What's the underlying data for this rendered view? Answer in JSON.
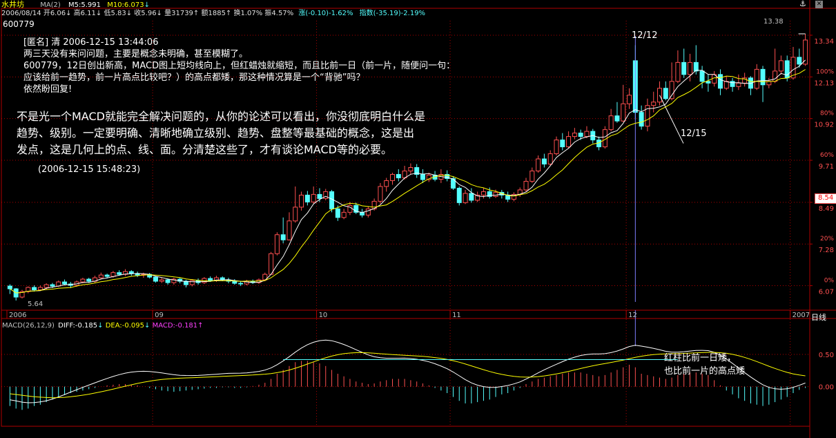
{
  "colors": {
    "up": "#ff5050",
    "down": "#54ffff",
    "ma5": "#ffffff",
    "ma10": "#ffff00",
    "frame": "#b00000",
    "text": "#c0c0c0",
    "white": "#ffffff",
    "yellow": "#ffff00",
    "magenta": "#ff40ff",
    "cyan": "#54ffff",
    "red": "#ff5050"
  },
  "header": {
    "stock_name": "水井坊",
    "ma_label": "MA(2)",
    "ma5": "M5:5.991",
    "ma10": "M10:6.073",
    "close_arrow": "↓",
    "code": "600779",
    "quote_line": "2006/08/14 开6.06↓ 高6.11↓ 低5.83↓ 收5.96↓ 量31739↑ 额1885↑ 换1.07% 振4.57%",
    "change": "涨(-0.10)-1.62%",
    "index": "指数(-35.19)-2.19%",
    "anchor_icon": "⚓",
    "close_icon": "✕"
  },
  "post": {
    "line1": "[匿名] 清 2006-12-15 13:44:06",
    "line2": "两三天没有来问问题，主要是概念未明确，甚至模糊了。",
    "line3": "600779，12日创出新高，MACD图上短均线向上，但红蜡烛就缩短，而且比前一日（前一片，随便问一句：",
    "line4": "应该给前一趋势，前一片高点比较吧？）的高点都矮，那这种情况算是一个“背驰”吗？",
    "line5": "依然盼回复!"
  },
  "reply": {
    "line1": "不是光一个MACD就能完全解决问题的，从你的论述可以看出，你没彻底明白什么是",
    "line2": "趋势、级别。一定要明确、清晰地确立级别、趋势、盘整等最基础的概念，这是出",
    "line3": "发点，这是几何上的点、线、面。分清楚这些了，才有谈论MACD等的必要。",
    "time": "(2006-12-15 15:48:23)"
  },
  "annotations": {
    "date_1212": "12/12",
    "date_1215": "12/15",
    "macd_note1": "红柱比前一日矮，",
    "macd_note2": "也比前一片的高点矮",
    "high_label": "13.38",
    "low_label": "5.64"
  },
  "macd_header": {
    "label": "MACD(26,12,9)",
    "diff": "DIFF:-0.185",
    "dea": "DEA:-0.095",
    "macd": "MACD:-0.181",
    "diff_arrow": "↓",
    "dea_arrow": "↓",
    "macd_arrow": "↑"
  },
  "axis": {
    "price_ticks": [
      {
        "pct": "",
        "price": "13.34",
        "v": 13.34
      },
      {
        "pct": "100%",
        "price": "12.13",
        "v": 12.13
      },
      {
        "pct": "80%",
        "price": "10.92",
        "v": 10.92
      },
      {
        "pct": "60%",
        "price": "9.71",
        "v": 9.71
      },
      {
        "pct": "",
        "price": "8.49",
        "v": 8.49
      },
      {
        "pct": "20%",
        "price": "7.28",
        "v": 7.28
      },
      {
        "pct": "0%",
        "price": "6.07",
        "v": 6.07
      }
    ],
    "current_price": "8.54",
    "macd_ticks": [
      "0.50",
      "0.00"
    ],
    "month_labels": [
      "2006",
      "09",
      "10",
      "11",
      "12",
      "2007"
    ],
    "daily_label": "日线"
  },
  "chart_data": {
    "type": "candlestick",
    "price_range": [
      5.6,
      13.6
    ],
    "macd_range": [
      -0.55,
      0.95
    ],
    "month_start_index": [
      0,
      24,
      51,
      73,
      102,
      129
    ],
    "candles": [
      [
        6.06,
        5.98,
        6.11,
        5.83
      ],
      [
        5.98,
        5.74,
        6.0,
        5.64
      ],
      [
        5.74,
        5.9,
        5.95,
        5.7
      ],
      [
        5.9,
        6.02,
        6.05,
        5.85
      ],
      [
        6.02,
        5.95,
        6.08,
        5.9
      ],
      [
        5.95,
        6.02,
        6.08,
        5.92
      ],
      [
        6.02,
        6.1,
        6.14,
        5.96
      ],
      [
        6.1,
        6.06,
        6.15,
        6.0
      ],
      [
        6.06,
        6.18,
        6.22,
        6.03
      ],
      [
        6.18,
        6.12,
        6.25,
        6.08
      ],
      [
        6.12,
        6.08,
        6.18,
        6.0
      ],
      [
        6.08,
        6.18,
        6.22,
        6.04
      ],
      [
        6.18,
        6.26,
        6.3,
        6.14
      ],
      [
        6.26,
        6.2,
        6.3,
        6.15
      ],
      [
        6.2,
        6.3,
        6.36,
        6.16
      ],
      [
        6.3,
        6.38,
        6.45,
        6.26
      ],
      [
        6.38,
        6.34,
        6.42,
        6.28
      ],
      [
        6.34,
        6.45,
        6.5,
        6.3
      ],
      [
        6.45,
        6.4,
        6.52,
        6.36
      ],
      [
        6.4,
        6.48,
        6.55,
        6.35
      ],
      [
        6.48,
        6.42,
        6.52,
        6.36
      ],
      [
        6.42,
        6.38,
        6.48,
        6.32
      ],
      [
        6.38,
        6.4,
        6.45,
        6.3
      ],
      [
        6.4,
        6.32,
        6.44,
        6.28
      ],
      [
        6.32,
        6.2,
        6.35,
        6.16
      ],
      [
        6.2,
        6.24,
        6.3,
        6.15
      ],
      [
        6.24,
        6.16,
        6.28,
        6.1
      ],
      [
        6.16,
        6.26,
        6.3,
        6.1
      ],
      [
        6.26,
        6.2,
        6.3,
        6.14
      ],
      [
        6.2,
        6.1,
        6.24,
        6.02
      ],
      [
        6.1,
        6.22,
        6.26,
        6.05
      ],
      [
        6.22,
        6.16,
        6.28,
        6.1
      ],
      [
        6.16,
        6.28,
        6.32,
        6.12
      ],
      [
        6.28,
        6.22,
        6.34,
        6.18
      ],
      [
        6.22,
        6.3,
        6.36,
        6.18
      ],
      [
        6.3,
        6.24,
        6.34,
        6.2
      ],
      [
        6.24,
        6.2,
        6.3,
        6.14
      ],
      [
        6.2,
        6.14,
        6.26,
        6.1
      ],
      [
        6.14,
        6.12,
        6.2,
        6.06
      ],
      [
        6.12,
        6.2,
        6.24,
        6.08
      ],
      [
        6.2,
        6.16,
        6.25,
        6.12
      ],
      [
        6.16,
        6.24,
        6.28,
        6.12
      ],
      [
        6.24,
        6.4,
        6.45,
        6.2
      ],
      [
        6.4,
        7.0,
        7.05,
        6.38
      ],
      [
        7.0,
        7.55,
        7.62,
        6.95
      ],
      [
        7.55,
        7.4,
        8.05,
        7.3
      ],
      [
        7.4,
        7.95,
        8.2,
        7.38
      ],
      [
        7.95,
        8.35,
        8.95,
        7.9
      ],
      [
        8.35,
        8.7,
        8.8,
        8.25
      ],
      [
        8.7,
        8.5,
        8.82,
        8.4
      ],
      [
        8.5,
        8.72,
        8.95,
        8.45
      ],
      [
        8.72,
        8.6,
        8.9,
        8.5
      ],
      [
        8.6,
        8.8,
        8.88,
        8.55
      ],
      [
        8.8,
        8.3,
        8.85,
        8.2
      ],
      [
        8.3,
        8.05,
        8.4,
        7.95
      ],
      [
        8.05,
        8.2,
        8.3,
        8.0
      ],
      [
        8.2,
        8.4,
        8.5,
        8.12
      ],
      [
        8.4,
        8.2,
        8.48,
        8.15
      ],
      [
        8.2,
        8.12,
        8.3,
        8.05
      ],
      [
        8.12,
        8.3,
        8.38,
        8.05
      ],
      [
        8.3,
        8.52,
        8.6,
        8.25
      ],
      [
        8.52,
        8.95,
        9.05,
        8.45
      ],
      [
        8.95,
        9.12,
        9.2,
        8.8
      ],
      [
        9.12,
        9.3,
        9.35,
        9.0
      ],
      [
        9.3,
        9.2,
        9.45,
        9.1
      ],
      [
        9.2,
        9.4,
        9.55,
        9.15
      ],
      [
        9.4,
        9.5,
        9.62,
        9.3
      ],
      [
        9.5,
        9.3,
        9.6,
        9.2
      ],
      [
        9.3,
        9.15,
        9.45,
        9.05
      ],
      [
        9.15,
        9.28,
        9.35,
        9.08
      ],
      [
        9.28,
        9.16,
        9.4,
        9.1
      ],
      [
        9.16,
        9.3,
        9.45,
        9.05
      ],
      [
        9.3,
        9.18,
        9.42,
        9.1
      ],
      [
        9.18,
        8.9,
        9.25,
        8.85
      ],
      [
        8.9,
        8.48,
        8.95,
        8.4
      ],
      [
        8.48,
        8.75,
        8.85,
        8.44
      ],
      [
        8.75,
        8.55,
        8.9,
        8.48
      ],
      [
        8.55,
        8.7,
        8.8,
        8.5
      ],
      [
        8.7,
        8.8,
        8.9,
        8.6
      ],
      [
        8.8,
        8.66,
        8.92,
        8.6
      ],
      [
        8.66,
        8.78,
        8.86,
        8.62
      ],
      [
        8.78,
        8.7,
        8.85,
        8.6
      ],
      [
        8.7,
        8.58,
        8.8,
        8.5
      ],
      [
        8.58,
        8.72,
        8.78,
        8.52
      ],
      [
        8.72,
        8.85,
        8.92,
        8.65
      ],
      [
        8.85,
        9.1,
        9.2,
        8.8
      ],
      [
        9.1,
        9.4,
        9.5,
        9.05
      ],
      [
        9.4,
        9.75,
        9.85,
        9.35
      ],
      [
        9.75,
        9.6,
        9.9,
        9.5
      ],
      [
        9.6,
        9.9,
        10.0,
        9.55
      ],
      [
        9.9,
        10.3,
        10.4,
        9.85
      ],
      [
        10.3,
        10.1,
        10.5,
        10.0
      ],
      [
        10.1,
        10.4,
        10.55,
        10.05
      ],
      [
        10.4,
        10.5,
        10.65,
        10.32
      ],
      [
        10.5,
        10.4,
        10.6,
        10.3
      ],
      [
        10.4,
        10.55,
        10.7,
        10.35
      ],
      [
        10.55,
        10.3,
        10.62,
        10.2
      ],
      [
        10.3,
        10.1,
        10.4,
        10.0
      ],
      [
        10.1,
        10.6,
        10.7,
        10.05
      ],
      [
        10.6,
        11.0,
        11.2,
        10.55
      ],
      [
        11.0,
        10.85,
        11.4,
        10.8
      ],
      [
        10.85,
        11.35,
        11.9,
        10.82
      ],
      [
        11.35,
        11.6,
        11.8,
        11.2
      ],
      [
        12.6,
        11.1,
        13.05,
        10.9
      ],
      [
        11.1,
        10.7,
        11.3,
        10.6
      ],
      [
        10.7,
        11.3,
        11.5,
        10.55
      ],
      [
        11.3,
        11.4,
        11.7,
        11.1
      ],
      [
        11.4,
        11.8,
        12.0,
        11.3
      ],
      [
        11.8,
        11.5,
        12.0,
        11.45
      ],
      [
        11.5,
        12.0,
        12.55,
        11.45
      ],
      [
        12.0,
        12.55,
        12.9,
        11.95
      ],
      [
        12.55,
        12.2,
        12.95,
        12.1
      ],
      [
        12.2,
        12.55,
        12.8,
        12.0
      ],
      [
        12.55,
        12.3,
        13.05,
        12.2
      ],
      [
        12.3,
        12.0,
        12.45,
        11.8
      ],
      [
        12.0,
        11.95,
        12.2,
        11.7
      ],
      [
        11.95,
        12.2,
        12.3,
        11.85
      ],
      [
        12.2,
        11.8,
        12.35,
        11.6
      ],
      [
        11.8,
        12.0,
        12.15,
        11.75
      ],
      [
        12.0,
        11.85,
        12.1,
        11.7
      ],
      [
        11.85,
        11.95,
        12.2,
        11.75
      ],
      [
        11.95,
        12.1,
        12.25,
        11.85
      ],
      [
        12.1,
        11.8,
        12.15,
        11.6
      ],
      [
        11.8,
        12.35,
        12.5,
        11.75
      ],
      [
        12.35,
        11.9,
        12.45,
        11.4
      ],
      [
        11.9,
        12.0,
        12.1,
        11.8
      ],
      [
        12.0,
        12.3,
        12.95,
        11.95
      ],
      [
        12.3,
        12.6,
        12.75,
        12.2
      ],
      [
        12.6,
        12.1,
        12.75,
        12.0
      ],
      [
        12.1,
        12.7,
        13.0,
        12.05
      ],
      [
        12.7,
        12.5,
        12.95,
        12.4
      ],
      [
        12.5,
        13.2,
        13.38,
        12.45
      ]
    ],
    "macd_hist": [
      -0.3,
      -0.34,
      -0.36,
      -0.34,
      -0.3,
      -0.28,
      -0.24,
      -0.2,
      -0.16,
      -0.13,
      -0.1,
      -0.08,
      -0.06,
      -0.04,
      -0.02,
      0.0,
      0.02,
      0.03,
      0.04,
      0.04,
      0.03,
      0.02,
      0.0,
      -0.02,
      -0.04,
      -0.06,
      -0.07,
      -0.08,
      -0.07,
      -0.06,
      -0.05,
      -0.04,
      -0.03,
      -0.02,
      -0.02,
      -0.01,
      -0.01,
      -0.02,
      -0.02,
      -0.01,
      0.01,
      0.03,
      0.06,
      0.12,
      0.2,
      0.26,
      0.32,
      0.38,
      0.4,
      0.4,
      0.38,
      0.36,
      0.32,
      0.26,
      0.2,
      0.16,
      0.12,
      0.08,
      0.06,
      0.04,
      0.05,
      0.08,
      0.1,
      0.12,
      0.12,
      0.12,
      0.1,
      0.08,
      0.05,
      0.02,
      -0.02,
      -0.06,
      -0.1,
      -0.16,
      -0.22,
      -0.26,
      -0.26,
      -0.24,
      -0.22,
      -0.2,
      -0.16,
      -0.12,
      -0.1,
      -0.06,
      -0.02,
      0.04,
      0.08,
      0.12,
      0.14,
      0.16,
      0.18,
      0.2,
      0.22,
      0.22,
      0.22,
      0.2,
      0.18,
      0.16,
      0.18,
      0.22,
      0.26,
      0.3,
      0.34,
      0.3,
      0.2,
      0.18,
      0.16,
      0.14,
      0.12,
      0.14,
      0.18,
      0.2,
      0.22,
      0.22,
      0.2,
      0.18,
      0.1,
      0.02,
      -0.06,
      -0.12,
      -0.18,
      -0.22,
      -0.26,
      -0.28,
      -0.3,
      -0.28,
      -0.24,
      -0.2,
      -0.16,
      -0.1,
      -0.05,
      -0.02
    ]
  }
}
